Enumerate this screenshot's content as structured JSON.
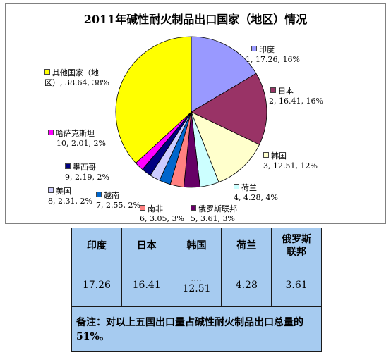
{
  "chart_data": {
    "type": "pie",
    "title": "2011年碱性耐火制品出口国家（地区）情况",
    "slices": [
      {
        "name": "印度",
        "index": 1,
        "value": 17.26,
        "percent": "16%",
        "color": "#9999ff"
      },
      {
        "name": "日本",
        "index": 2,
        "value": 16.41,
        "percent": "16%",
        "color": "#993366"
      },
      {
        "name": "韩国",
        "index": 3,
        "value": 12.51,
        "percent": "12%",
        "color": "#ffffcc"
      },
      {
        "name": "荷兰",
        "index": 4,
        "value": 4.28,
        "percent": "4%",
        "color": "#ccffff"
      },
      {
        "name": "俄罗斯联邦",
        "index": 5,
        "value": 3.61,
        "percent": "3%",
        "color": "#660066"
      },
      {
        "name": "南非",
        "index": 6,
        "value": 3.05,
        "percent": "3%",
        "color": "#ff8080"
      },
      {
        "name": "越南",
        "index": 7,
        "value": 2.55,
        "percent": "2%",
        "color": "#0066cc"
      },
      {
        "name": "美国",
        "index": 8,
        "value": 2.31,
        "percent": "2%",
        "color": "#ccccff"
      },
      {
        "name": "墨西哥",
        "index": 9,
        "value": 2.19,
        "percent": "2%",
        "color": "#000080"
      },
      {
        "name": "哈萨克斯坦",
        "index": 10,
        "value": 2.01,
        "percent": "2%",
        "color": "#ff00ff"
      },
      {
        "name": "其他国家（地区）",
        "index": null,
        "value": 38.64,
        "percent": "38%",
        "color": "#ffff00"
      }
    ],
    "labels": [
      {
        "line1": "印度",
        "line2": "1, 17.26, 16%"
      },
      {
        "line1": "日本",
        "line2": "2, 16.41, 16%"
      },
      {
        "line1": "韩国",
        "line2": "3, 12.51, 12%"
      },
      {
        "line1": "荷兰",
        "line2": "4, 4.28, 4%"
      },
      {
        "line1": "俄罗斯联邦",
        "line2": "5, 3.61, 3%"
      },
      {
        "line1": "南非",
        "line2": "6, 3.05, 3%"
      },
      {
        "line1": "越南",
        "line2": "7, 2.55, 2%"
      },
      {
        "line1": "美国",
        "line2": "8, 2.31, 2%"
      },
      {
        "line1": "墨西哥",
        "line2": "9, 2.19, 2%"
      },
      {
        "line1": "哈萨克斯坦",
        "line2": "10, 2.01, 2%"
      },
      {
        "line1": "其他国家（地",
        "line2": "区）, 38.64, 38%"
      }
    ]
  },
  "table": {
    "headers": [
      "印度",
      "日本",
      "韩国",
      "荷兰",
      "俄罗斯联邦"
    ],
    "values": [
      "17.26",
      "16.41",
      "12.51",
      "4.28",
      "3.61"
    ],
    "dots": "....",
    "note": "备注：对以上五国出口量占碱性耐火制品出口总量的 51%。"
  }
}
